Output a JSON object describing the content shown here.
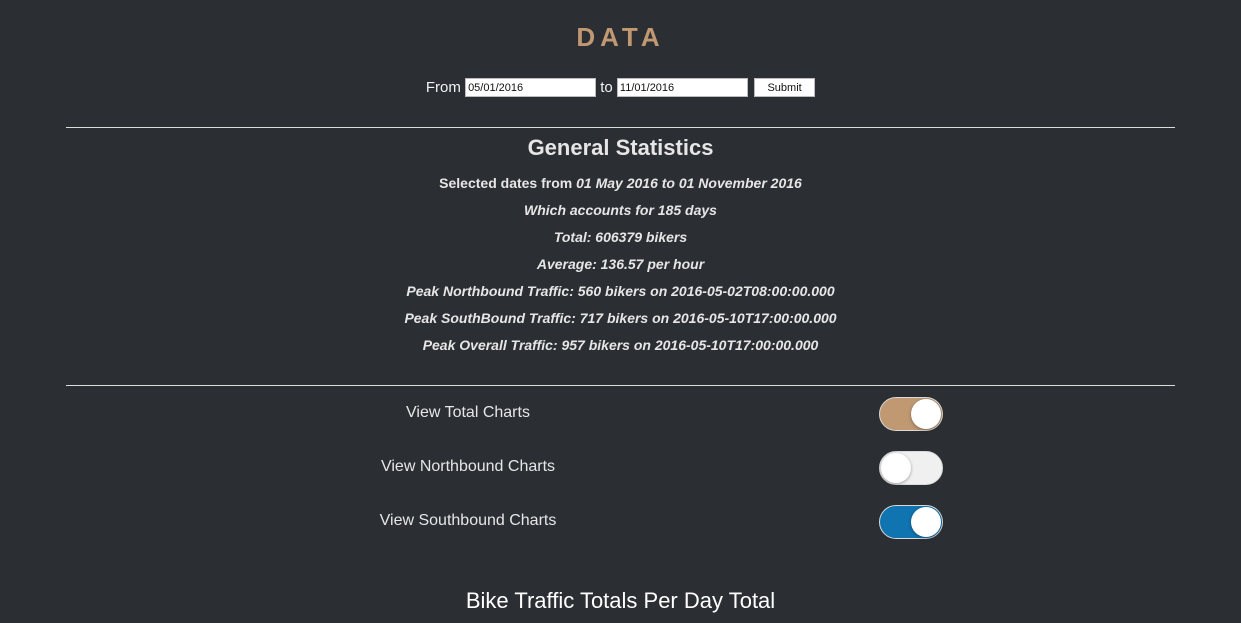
{
  "header": {
    "title": "DATA"
  },
  "date_form": {
    "from_label": "From",
    "from_value": "05/01/2016",
    "to_label": "to",
    "to_value": "11/01/2016",
    "submit_label": "Submit"
  },
  "stats": {
    "heading": "General Statistics",
    "selected_prefix": "Selected dates from",
    "selected_range": "01 May 2016 to 01 November 2016",
    "accounts": "Which accounts for 185 days",
    "total": "Total: 606379 bikers",
    "average": "Average: 136.57 per hour",
    "peak_north": "Peak Northbound Traffic: 560 bikers on 2016-05-02T08:00:00.000",
    "peak_south": "Peak SouthBound Traffic: 717 bikers on 2016-05-10T17:00:00.000",
    "peak_overall": "Peak Overall Traffic: 957 bikers on 2016-05-10T17:00:00.000"
  },
  "toggles": {
    "total": {
      "label": "View Total Charts",
      "on": true,
      "color": "#c09872"
    },
    "northbound": {
      "label": "View Northbound Charts",
      "on": false,
      "color": "#f0f0f0"
    },
    "southbound": {
      "label": "View Southbound Charts",
      "on": true,
      "color": "#1074b0"
    }
  },
  "chart_section": {
    "heading": "Bike Traffic Totals Per Day Total"
  },
  "colors": {
    "background": "#2b2e33",
    "accent": "#c09872",
    "toggle_blue": "#1074b0"
  }
}
